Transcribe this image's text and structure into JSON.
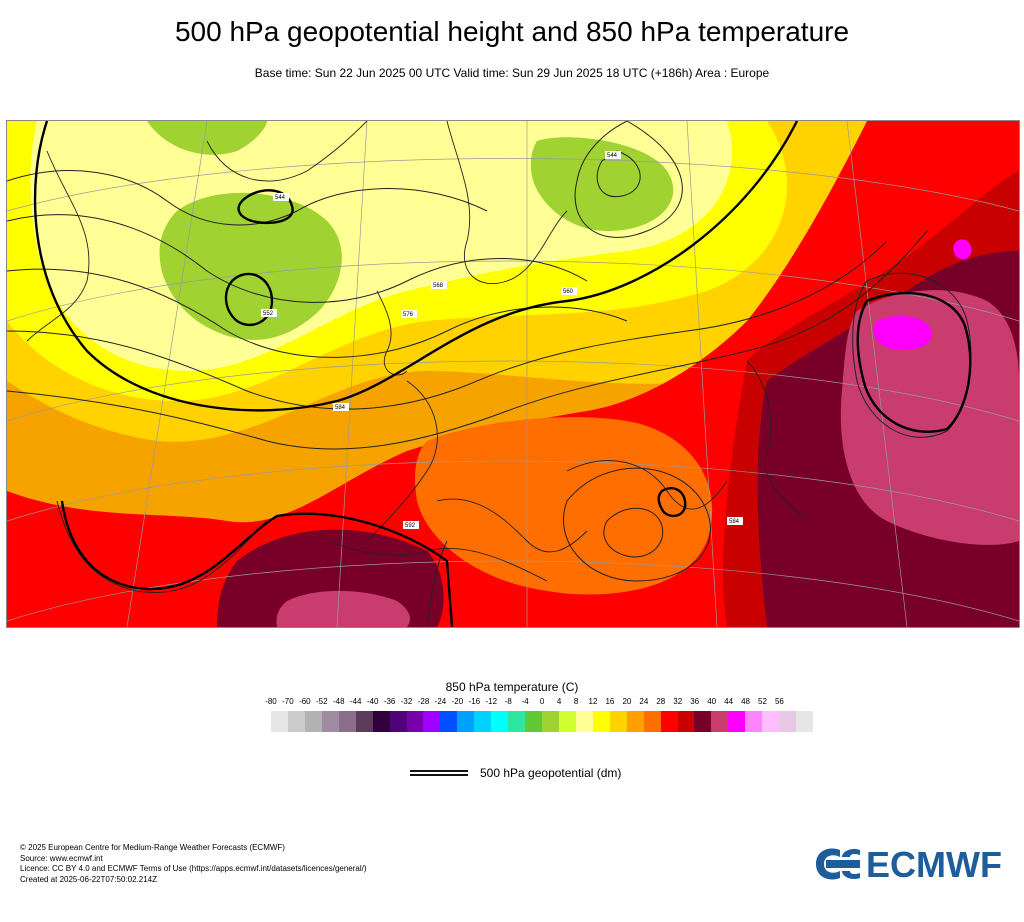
{
  "header": {
    "title": "500 hPa geopotential height and 850 hPa temperature",
    "subtitle": "Base time: Sun 22 Jun 2025 00 UTC Valid time: Sun 29 Jun 2025 18 UTC (+186h) Area : Europe"
  },
  "map": {
    "contour_labels": [
      "568",
      "576",
      "584",
      "560",
      "544",
      "552",
      "592",
      "544",
      "584"
    ]
  },
  "legend": {
    "title": "850 hPa temperature (C)",
    "ticks": [
      "-80",
      "-70",
      "-60",
      "-52",
      "-48",
      "-44",
      "-40",
      "-36",
      "-32",
      "-28",
      "-24",
      "-20",
      "-16",
      "-12",
      "-8",
      "-4",
      "0",
      "4",
      "8",
      "12",
      "16",
      "20",
      "24",
      "28",
      "32",
      "36",
      "40",
      "44",
      "48",
      "52",
      "56"
    ],
    "colors": [
      "#e6e6e6",
      "#cccccc",
      "#b3b3b3",
      "#a08ca0",
      "#8c6e8c",
      "#5a3c5a",
      "#32003c",
      "#500078",
      "#7800aa",
      "#a000ff",
      "#0050ff",
      "#00a0ff",
      "#00d2ff",
      "#00ffff",
      "#2ee6a0",
      "#64c832",
      "#a0d232",
      "#d2ff32",
      "#ffff96",
      "#ffff00",
      "#ffd200",
      "#ffa000",
      "#ff6e00",
      "#ff0000",
      "#c80000",
      "#780028",
      "#c83c6e",
      "#ff00ff",
      "#ff82ff",
      "#ffbeff",
      "#e6c8e6",
      "#e6e6e6"
    ],
    "geopotential_label": "500 hPa geopotential (dm)"
  },
  "footer": {
    "lines": [
      "© 2025 European Centre for Medium-Range Weather Forecasts (ECMWF)",
      "Source: www.ecmwf.int",
      "Licence: CC BY 4.0 and ECMWF Terms of Use (https://apps.ecmwf.int/datasets/licences/general/)",
      "Created at 2025-06-22T07:50:02.214Z"
    ]
  },
  "logo": {
    "text": "ECMWF",
    "color": "#1d5d9b"
  }
}
